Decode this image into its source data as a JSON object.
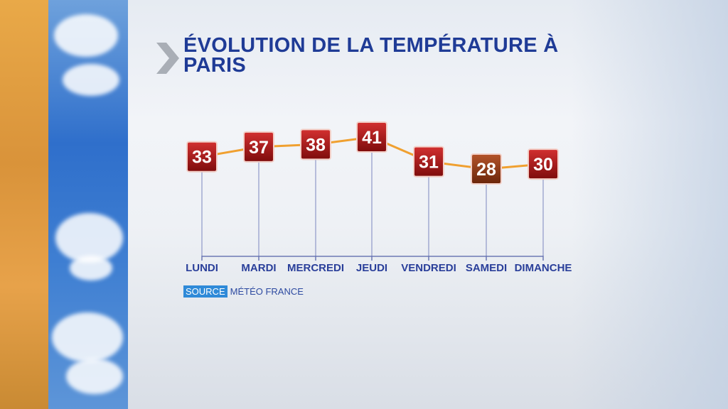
{
  "title": "ÉVOLUTION DE LA TEMPÉRATURE À PARIS",
  "source": {
    "tag": "SOURCE",
    "text": "MÉTÉO FRANCE"
  },
  "colors": {
    "title": "#1f3b96",
    "line": "#f0a030",
    "marker": "#a81414",
    "marker_low": "#8a3410",
    "source_tag": "#2f8ad8"
  },
  "chart_data": {
    "type": "line",
    "title": "ÉVOLUTION DE LA TEMPÉRATURE À PARIS",
    "categories": [
      "LUNDI",
      "MARDI",
      "MERCREDI",
      "JEUDI",
      "VENDREDI",
      "SAMEDI",
      "DIMANCHE"
    ],
    "series": [
      {
        "values": [
          33,
          37,
          38,
          41,
          31,
          28,
          30
        ]
      }
    ],
    "ylim": [
      28,
      41
    ],
    "grid": false,
    "data_labels": true
  }
}
